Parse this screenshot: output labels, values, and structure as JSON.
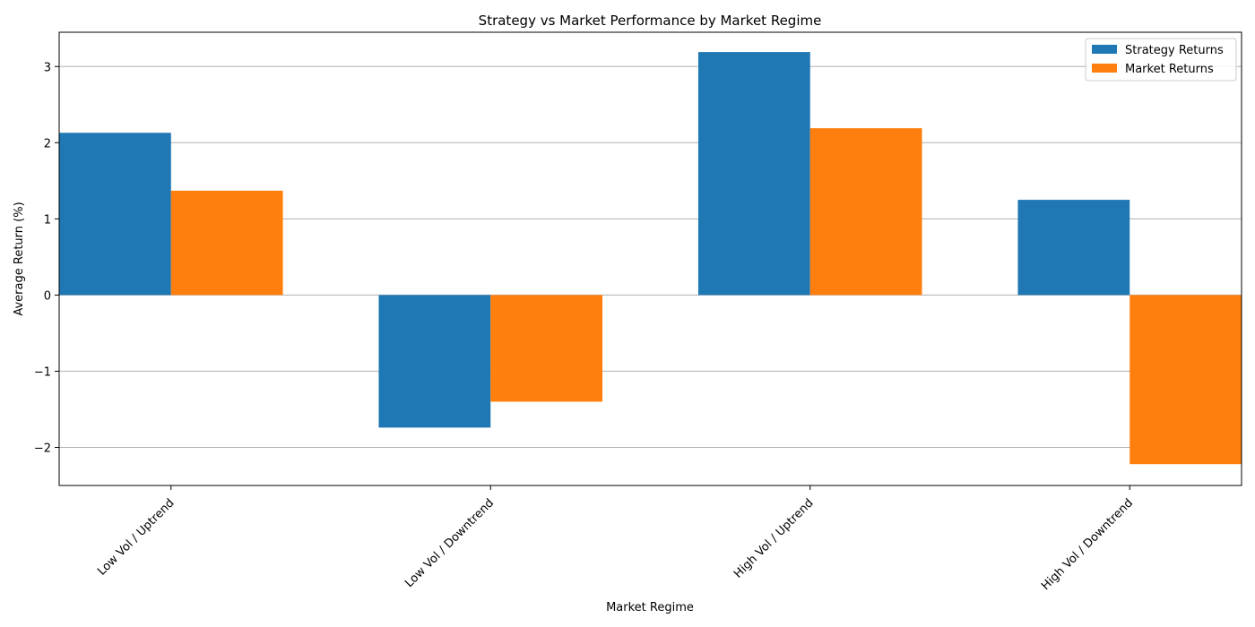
{
  "chart_data": {
    "type": "bar",
    "title": "Strategy vs Market Performance by Market Regime",
    "xlabel": "Market Regime",
    "ylabel": "Average Return (%)",
    "categories": [
      "Low Vol / Uptrend",
      "Low Vol / Downtrend",
      "High Vol / Uptrend",
      "High Vol / Downtrend"
    ],
    "series": [
      {
        "name": "Strategy Returns",
        "color": "#1f77b4",
        "values": [
          2.13,
          -1.74,
          3.19,
          1.25
        ]
      },
      {
        "name": "Market Returns",
        "color": "#ff7f0e",
        "values": [
          1.37,
          -1.4,
          2.19,
          -2.22
        ]
      }
    ],
    "ylim": [
      -2.5,
      3.45
    ],
    "yticks": [
      -2,
      -1,
      0,
      1,
      2,
      3
    ],
    "ytick_labels": [
      "−2",
      "−1",
      "0",
      "1",
      "2",
      "3"
    ],
    "grid": "y",
    "legend": "top-right"
  }
}
